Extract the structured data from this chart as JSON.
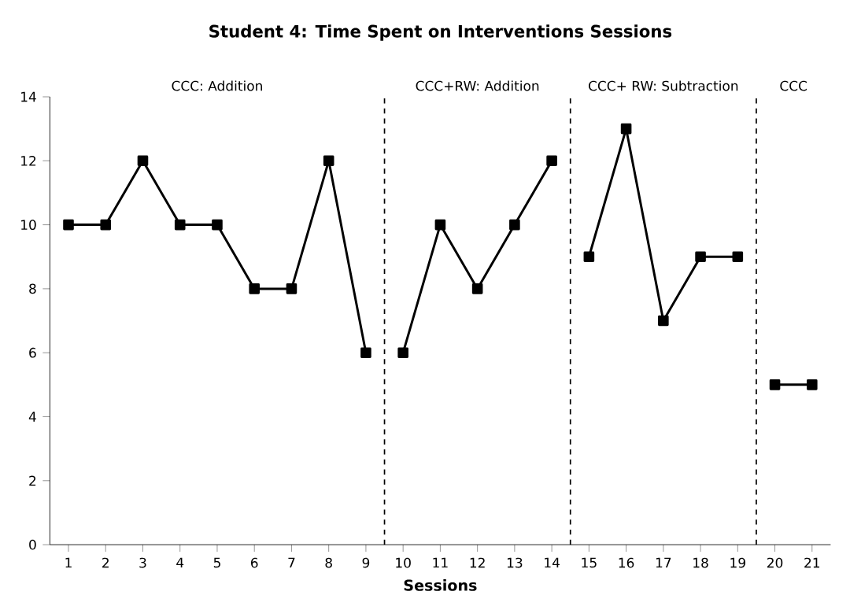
{
  "chart_data": {
    "type": "line",
    "title": "Student 4: Time Spent on Interventions Sessions",
    "xlabel": "Sessions",
    "series": [
      {
        "color": "#000000",
        "x": [
          1,
          2,
          3,
          4,
          5,
          6,
          7,
          8,
          9
        ],
        "values": [
          10,
          10,
          12,
          10,
          10,
          8,
          8,
          12,
          6
        ]
      },
      {
        "color": "#000000",
        "x": [
          10,
          11,
          12,
          13,
          14
        ],
        "values": [
          6,
          10,
          8,
          10,
          12
        ]
      },
      {
        "color": "#000000",
        "x": [
          15,
          16,
          17,
          18,
          19
        ],
        "values": [
          9,
          13,
          7,
          9,
          9
        ]
      },
      {
        "color": "#000000",
        "x": [
          20,
          21
        ],
        "values": [
          5,
          5
        ]
      }
    ],
    "xlim": [
      0.5,
      21.5
    ],
    "xticks": [
      1,
      2,
      3,
      4,
      5,
      6,
      7,
      8,
      9,
      10,
      11,
      12,
      13,
      14,
      15,
      16,
      17,
      18,
      19,
      20,
      21
    ],
    "ylim": [
      0,
      14
    ],
    "yticks": [
      0,
      2,
      4,
      6,
      8,
      10,
      12,
      14
    ],
    "ref_lines": [
      {
        "axis": "x",
        "value": 9.5,
        "line_style": "dashed",
        "color": "#000000"
      },
      {
        "axis": "x",
        "value": 14.5,
        "line_style": "dashed",
        "color": "#000000"
      },
      {
        "axis": "x",
        "value": 19.5,
        "line_style": "dashed",
        "color": "#000000"
      }
    ],
    "annotations": [
      "CCC: Addition",
      "CCC+RW: Addition",
      "CCC+ RW: Subtraction",
      "CCC"
    ],
    "marker": "square",
    "line_style": "solid",
    "grid": false
  }
}
